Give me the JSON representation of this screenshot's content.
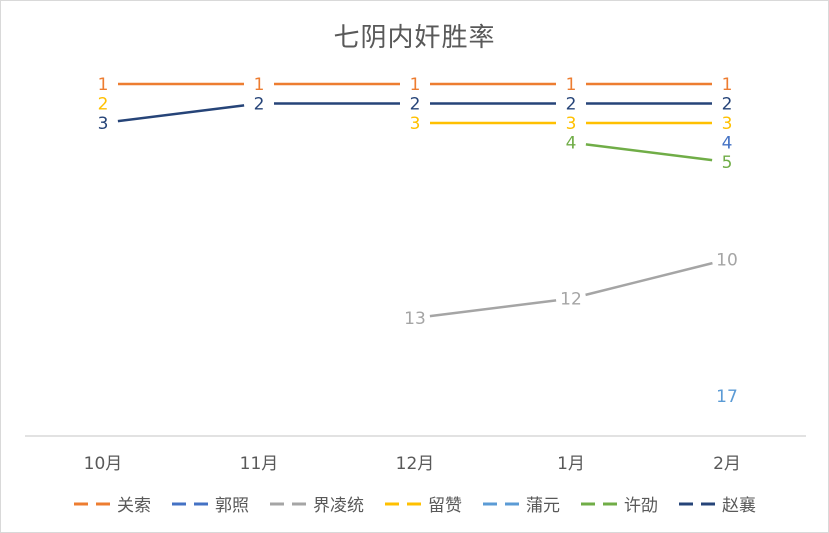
{
  "chart_data": {
    "type": "line",
    "title": "七阴内奸胜率",
    "categories": [
      "10月",
      "11月",
      "12月",
      "1月",
      "2月"
    ],
    "y_reversed": true,
    "ylim": [
      1,
      17
    ],
    "grid": false,
    "legend_position": "bottom",
    "series": [
      {
        "name": "关索",
        "color": "#ED7D31",
        "values": [
          1,
          1,
          1,
          1,
          1
        ]
      },
      {
        "name": "郭照",
        "color": "#4472C4",
        "values": [
          null,
          null,
          null,
          null,
          4
        ]
      },
      {
        "name": "界凌统",
        "color": "#A5A5A5",
        "values": [
          null,
          null,
          13,
          12,
          10
        ]
      },
      {
        "name": "留赞",
        "color": "#FFC000",
        "values": [
          2,
          null,
          3,
          3,
          3
        ]
      },
      {
        "name": "蒲元",
        "color": "#5B9BD5",
        "values": [
          null,
          null,
          null,
          null,
          17
        ]
      },
      {
        "name": "许劭",
        "color": "#70AD47",
        "values": [
          null,
          null,
          null,
          4,
          5
        ]
      },
      {
        "name": "赵襄",
        "color": "#264478",
        "values": [
          3,
          2,
          2,
          2,
          2
        ]
      }
    ]
  }
}
